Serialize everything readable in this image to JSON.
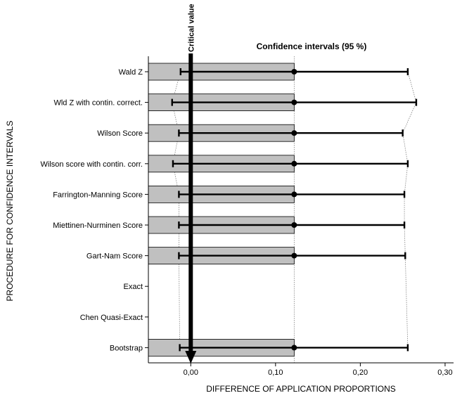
{
  "chart_data": {
    "type": "forest",
    "title": "Confidence intervals (95 %)",
    "xlabel": "DIFFERENCE OF APPLICATION PROPORTIONS",
    "ylabel": "PROCEDURE FOR CONFIDENCE INTERVALS",
    "xlim": [
      -0.05,
      0.31
    ],
    "xticks": [
      0.0,
      0.1,
      0.2,
      0.3
    ],
    "xtick_labels": [
      "0,00",
      "0,10",
      "0,20",
      "0,30"
    ],
    "critical_value": 0.0,
    "critical_value_label": "Critical value",
    "point_estimate": 0.122,
    "bar_start": -0.05,
    "categories": [
      "Wald Z",
      "Wld Z with contin. correct.",
      "Wilson Score",
      "Wilson score with contin. corr.",
      "Farrington-Manning Score",
      "Miettinen-Nurminen Score",
      "Gart-Nam Score",
      "Exact",
      "Chen Quasi-Exact",
      "Bootstrap"
    ],
    "intervals": [
      {
        "lower": -0.012,
        "estimate": 0.122,
        "upper": 0.256
      },
      {
        "lower": -0.022,
        "estimate": 0.122,
        "upper": 0.266
      },
      {
        "lower": -0.014,
        "estimate": 0.122,
        "upper": 0.25
      },
      {
        "lower": -0.021,
        "estimate": 0.122,
        "upper": 0.256
      },
      {
        "lower": -0.014,
        "estimate": 0.122,
        "upper": 0.252
      },
      {
        "lower": -0.014,
        "estimate": 0.122,
        "upper": 0.252
      },
      {
        "lower": -0.014,
        "estimate": 0.122,
        "upper": 0.253
      },
      null,
      null,
      {
        "lower": -0.013,
        "estimate": 0.122,
        "upper": 0.256
      }
    ],
    "colors": {
      "bar_fill": "#c0c0c0",
      "bar_stroke": "#000000",
      "interval": "#000000",
      "connector": "#808080",
      "critical": "#000000"
    }
  }
}
